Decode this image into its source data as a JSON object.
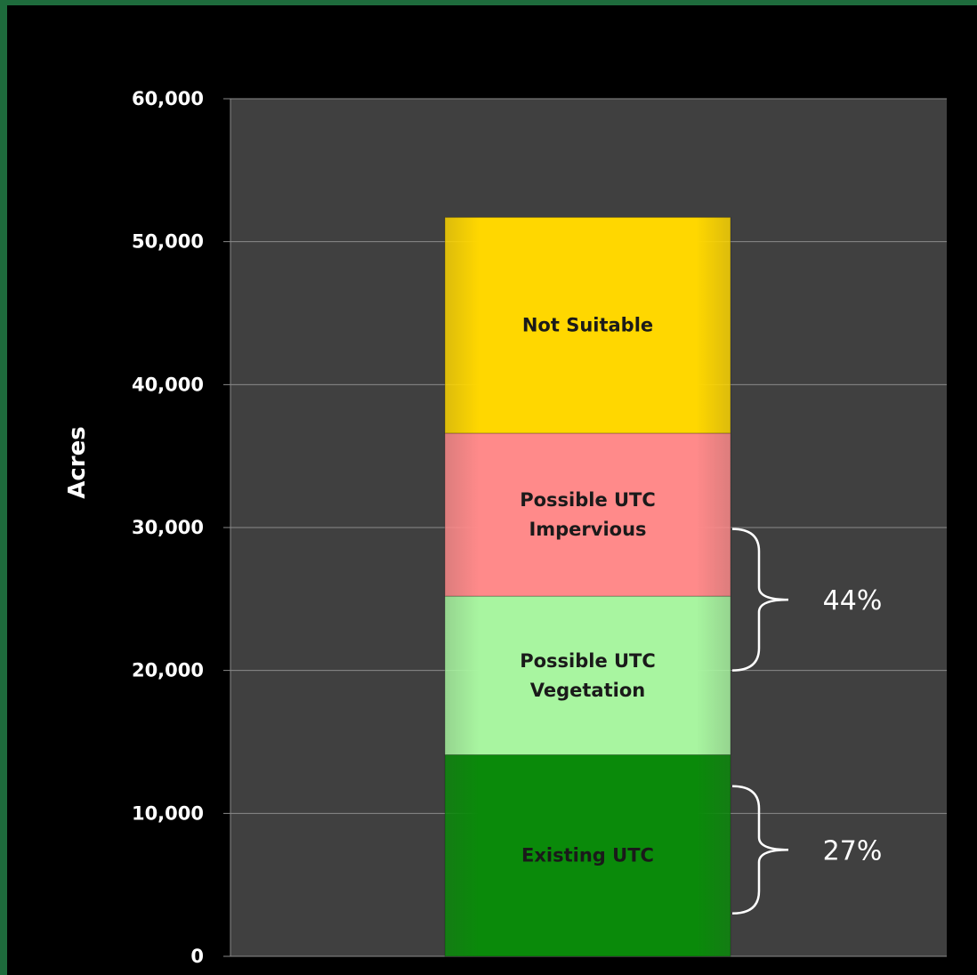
{
  "chart_data": {
    "type": "bar",
    "stacked": true,
    "ylabel": "Acres",
    "ylim": [
      0,
      60000
    ],
    "yticks": [
      "0",
      "10,000",
      "20,000",
      "30,000",
      "40,000",
      "50,000",
      "60,000"
    ],
    "ytick_values": [
      0,
      10000,
      20000,
      30000,
      40000,
      50000,
      60000
    ],
    "grid": true,
    "series": [
      {
        "name": "Existing UTC",
        "value": 14100,
        "color": "#0a8a0a"
      },
      {
        "name": "Possible UTC Vegetation",
        "value": 11100,
        "color": "#a8f5a0"
      },
      {
        "name": "Possible UTC Impervious",
        "value": 11400,
        "color": "#ff8a8a"
      },
      {
        "name": "Not Suitable",
        "value": 15100,
        "color": "#ffd700"
      }
    ],
    "segment_text": [
      [
        "Existing UTC"
      ],
      [
        "Possible UTC",
        "Vegetation"
      ],
      [
        "Possible UTC",
        "Impervious"
      ],
      [
        "Not Suitable"
      ]
    ],
    "annotations": [
      {
        "text": "44%",
        "from": 20000,
        "to": 29900
      },
      {
        "text": "27%",
        "from": 3000,
        "to": 11900
      }
    ]
  },
  "colors": {
    "background": "#000000",
    "plot_area": "#404040",
    "gridline": "#8a8a8a",
    "text": "#ffffff"
  }
}
